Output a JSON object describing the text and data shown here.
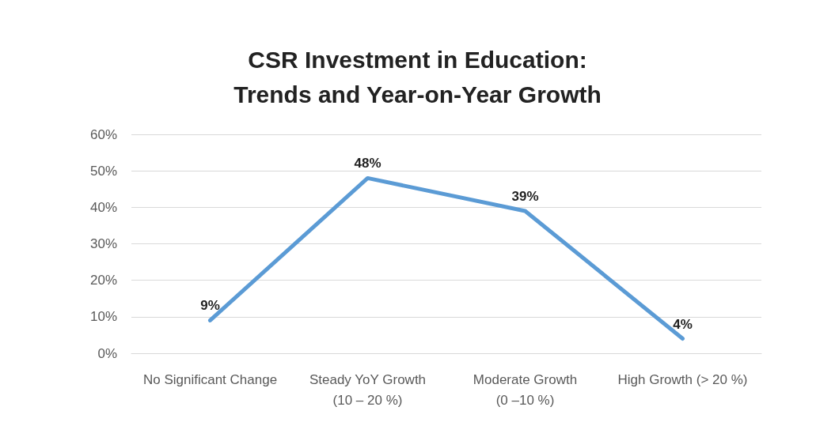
{
  "chart_data": {
    "type": "line",
    "title": "CSR Investment in Education:\nTrends and Year-on-Year Growth",
    "categories": [
      "No Significant Change",
      "Steady YoY Growth\n(10 – 20 %)",
      "Moderate Growth\n(0 –10 %)",
      "High Growth (> 20 %)"
    ],
    "series": [
      {
        "color": "#5b9bd5",
        "values": [
          9,
          48,
          39,
          4
        ],
        "value_labels": [
          "9%",
          "48%",
          "39%",
          "4%"
        ]
      }
    ],
    "ylim": [
      0,
      60
    ],
    "yticks": [
      {
        "value": 0,
        "label": "0%"
      },
      {
        "value": 10,
        "label": "10%"
      },
      {
        "value": 20,
        "label": "20%"
      },
      {
        "value": 30,
        "label": "30%"
      },
      {
        "value": 40,
        "label": "40%"
      },
      {
        "value": 50,
        "label": "50%"
      },
      {
        "value": 60,
        "label": "60%"
      }
    ],
    "grid": "y",
    "marker": "none",
    "line_style": "solid"
  }
}
